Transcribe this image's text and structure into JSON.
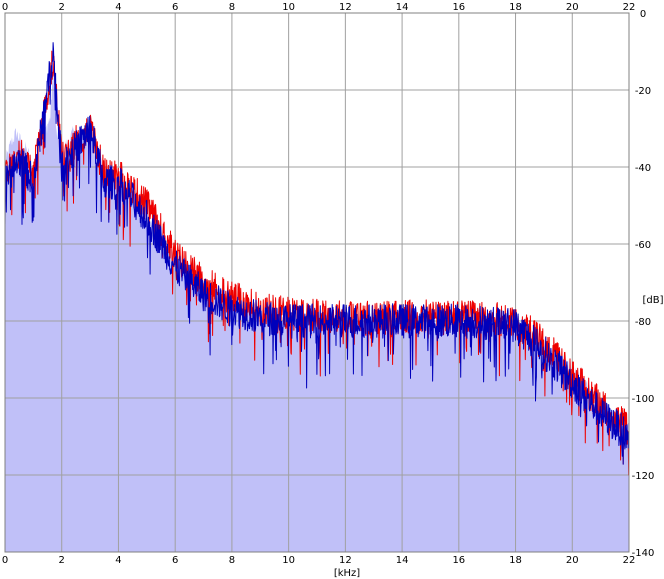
{
  "chart_data": {
    "type": "area",
    "x_unit": "[kHz]",
    "y_unit": "[dB]",
    "xlim": [
      0,
      22
    ],
    "ylim": [
      -140,
      0
    ],
    "x_ticks": [
      "0",
      "2",
      "4",
      "6",
      "8",
      "10",
      "12",
      "14",
      "16",
      "18",
      "20",
      "22"
    ],
    "y_ticks": [
      "0",
      "-20",
      "-40",
      "-60",
      "-80",
      "-100",
      "-120",
      "-140"
    ],
    "grid": true,
    "colors": {
      "fill": "#c0c0f8",
      "channel_1": "#ee0000",
      "channel_2": "#0000bb",
      "grid": "#a0a0a0",
      "frame": "#808080"
    },
    "envelope_x": [
      0,
      0.2,
      0.4,
      0.6,
      0.8,
      1.0,
      1.2,
      1.4,
      1.6,
      1.7,
      1.8,
      2.0,
      2.2,
      2.4,
      2.6,
      2.8,
      3.0,
      3.2,
      3.4,
      3.6,
      3.8,
      4.0,
      4.2,
      4.4,
      4.6,
      4.8,
      5.0,
      5.2,
      5.4,
      5.6,
      5.8,
      6.0,
      6.4,
      6.8,
      7.2,
      7.6,
      8.0,
      8.4,
      8.8,
      9.2,
      9.6,
      10.0,
      10.5,
      11.0,
      11.5,
      12.0,
      12.5,
      13.0,
      13.5,
      14.0,
      14.5,
      15.0,
      15.5,
      16.0,
      16.5,
      17.0,
      17.5,
      18.0,
      18.5,
      19.0,
      19.4,
      19.8,
      20.2,
      20.6,
      21.0,
      21.4,
      21.8,
      22.0
    ],
    "envelope_y": [
      -38,
      -33,
      -30,
      -33,
      -35,
      -40,
      -34,
      -30,
      -26,
      -12,
      -30,
      -34,
      -33,
      -30,
      -31,
      -33,
      -30,
      -36,
      -38,
      -40,
      -41,
      -42,
      -44,
      -45,
      -46,
      -48,
      -52,
      -56,
      -58,
      -60,
      -61,
      -62,
      -65,
      -68,
      -70,
      -72,
      -73,
      -75,
      -76,
      -77,
      -77,
      -78,
      -78,
      -78,
      -78,
      -78,
      -79,
      -78,
      -79,
      -79,
      -79,
      -79,
      -79,
      -79,
      -79,
      -79,
      -79,
      -80,
      -82,
      -85,
      -88,
      -90,
      -93,
      -97,
      -100,
      -103,
      -106,
      -107
    ],
    "series": [
      {
        "values_x": [
          0,
          0.5,
          1.0,
          1.7,
          2.0,
          2.5,
          3.0,
          3.5,
          4.0,
          5.0,
          6.0,
          7.0,
          8.0,
          9.0,
          10.0,
          12.0,
          14.0,
          16.0,
          18.0,
          19.0,
          20.0,
          21.0,
          22.0
        ],
        "values_y": [
          -42,
          -36,
          -42,
          -12,
          -38,
          -33,
          -30,
          -42,
          -42,
          -50,
          -63,
          -70,
          -74,
          -77,
          -78,
          -79,
          -79,
          -79,
          -80,
          -86,
          -94,
          -102,
          -108
        ]
      },
      {
        "values_x": [
          0,
          0.5,
          1.0,
          1.7,
          2.0,
          2.5,
          3.0,
          3.5,
          4.0,
          5.0,
          6.0,
          7.0,
          8.0,
          9.0,
          10.0,
          12.0,
          14.0,
          16.0,
          18.0,
          19.0,
          20.0,
          21.0,
          22.0
        ],
        "values_y": [
          -44,
          -38,
          -44,
          -10,
          -40,
          -35,
          -30,
          -44,
          -44,
          -53,
          -66,
          -73,
          -77,
          -79,
          -80,
          -80,
          -80,
          -80,
          -81,
          -88,
          -96,
          -104,
          -110
        ]
      }
    ]
  }
}
